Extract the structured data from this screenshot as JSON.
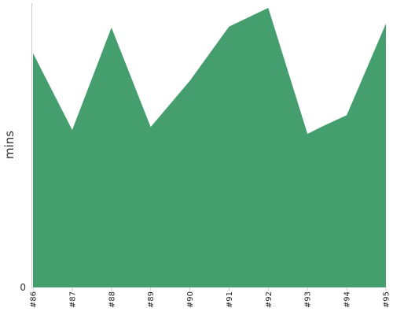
{
  "chart_data": {
    "type": "area",
    "title": "",
    "xlabel": "",
    "ylabel": "mins",
    "categories": [
      "#86",
      "#87",
      "#88",
      "#89",
      "#90",
      "#91",
      "#92",
      "#93",
      "#94",
      "#95"
    ],
    "x": [
      86,
      87,
      88,
      89,
      90,
      91,
      92,
      93,
      93.4,
      94,
      95
    ],
    "values": [
      23.8,
      16.0,
      26.4,
      16.3,
      21.0,
      26.5,
      28.4,
      15.6,
      16.4,
      17.5,
      26.8
    ],
    "y_ticks": [
      "0"
    ],
    "ylim": [
      0,
      30
    ],
    "grid": false,
    "legend": "none",
    "fill_color": "#459e6d",
    "axis_color": "#cccccc"
  }
}
